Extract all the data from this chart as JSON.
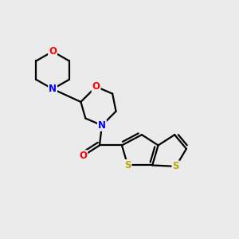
{
  "background_color": "#ebebeb",
  "bond_color": "#000000",
  "bond_width": 1.6,
  "atom_colors": {
    "O": "#ff0000",
    "N": "#0000ff",
    "S": "#bbaa00",
    "C": "#000000"
  },
  "font_size": 8.5,
  "figsize": [
    3.0,
    3.0
  ],
  "dpi": 100
}
